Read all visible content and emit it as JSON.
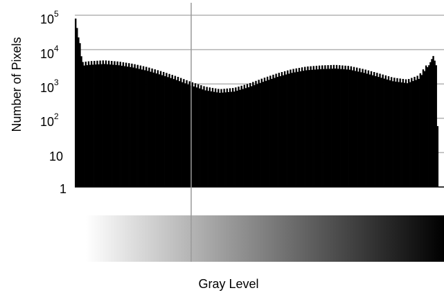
{
  "chart_data": {
    "type": "bar",
    "xlabel": "Gray Level",
    "ylabel": "Number of Pixels",
    "y_scale": "log",
    "ylim": [
      1,
      100000
    ],
    "grid": true,
    "y_ticks": [
      {
        "base": "10",
        "exp": "5",
        "value": 100000
      },
      {
        "base": "10",
        "exp": "4",
        "value": 10000
      },
      {
        "base": "10",
        "exp": "3",
        "value": 1000
      },
      {
        "base": "10",
        "exp": "2",
        "value": 100
      },
      {
        "base": "10",
        "exp": "",
        "value": 10
      },
      {
        "base": "1",
        "exp": "",
        "value": 1
      }
    ],
    "gradient_bar": {
      "from": "#ffffff",
      "to": "#000000"
    },
    "colors": {
      "bars": "#000000",
      "grid": "#b3b3b3",
      "marker": "#999999"
    },
    "profile": {
      "gray_levels": [
        0,
        5,
        10,
        20,
        30,
        40,
        50,
        60,
        70,
        80,
        90,
        100,
        110,
        120,
        130,
        140,
        150,
        160,
        170,
        180,
        190,
        200,
        210,
        220,
        230,
        238,
        245,
        248,
        250,
        252,
        253,
        255
      ],
      "counts": [
        80000,
        3400,
        3600,
        3800,
        3500,
        3000,
        2400,
        1800,
        1300,
        900,
        650,
        550,
        600,
        800,
        1150,
        1600,
        2100,
        2500,
        2700,
        2800,
        2600,
        2100,
        1600,
        1200,
        1050,
        1400,
        3500,
        6500,
        3500,
        1,
        1,
        1
      ]
    }
  }
}
